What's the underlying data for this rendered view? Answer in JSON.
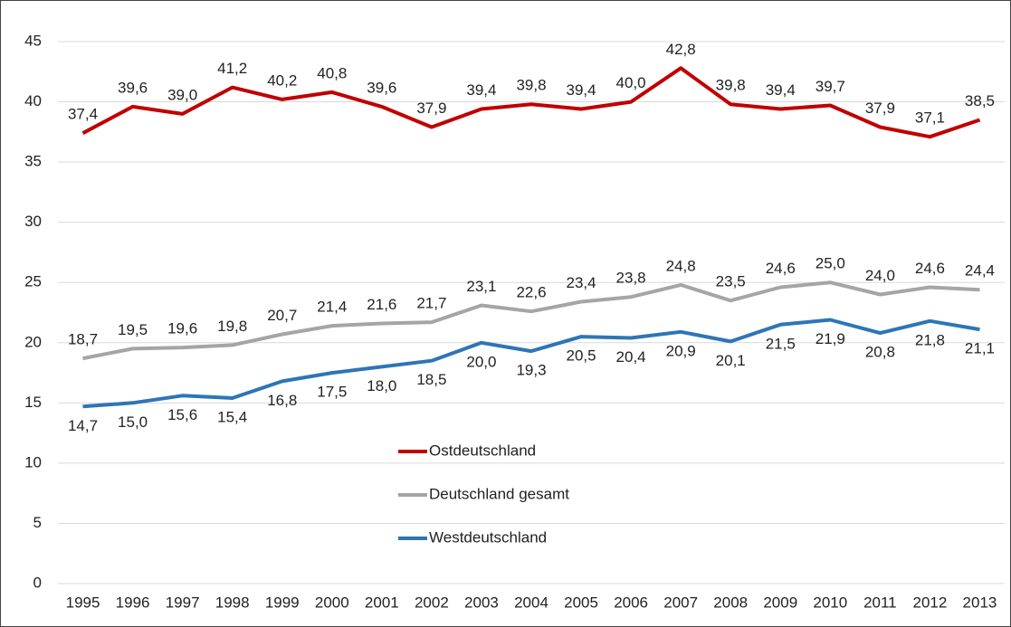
{
  "chart_data": {
    "type": "line",
    "categories": [
      "1995",
      "1996",
      "1997",
      "1998",
      "1999",
      "2000",
      "2001",
      "2002",
      "2003",
      "2004",
      "2005",
      "2006",
      "2007",
      "2008",
      "2009",
      "2010",
      "2011",
      "2012",
      "2013"
    ],
    "series": [
      {
        "name": "Ostdeutschland",
        "color": "#c00000",
        "values": [
          37.4,
          39.6,
          39.0,
          41.2,
          40.2,
          40.8,
          39.6,
          37.9,
          39.4,
          39.8,
          39.4,
          40.0,
          42.8,
          39.8,
          39.4,
          39.7,
          37.9,
          37.1,
          38.5
        ],
        "value_labels": [
          "37,4",
          "39,6",
          "39,0",
          "41,2",
          "40,2",
          "40,8",
          "39,6",
          "37,9",
          "39,4",
          "39,8",
          "39,4",
          "40,0",
          "42,8",
          "39,8",
          "39,4",
          "39,7",
          "37,9",
          "37,1",
          "38,5"
        ]
      },
      {
        "name": "Deutschland gesamt",
        "color": "#a5a5a5",
        "values": [
          18.7,
          19.5,
          19.6,
          19.8,
          20.7,
          21.4,
          21.6,
          21.7,
          23.1,
          22.6,
          23.4,
          23.8,
          24.8,
          23.5,
          24.6,
          25.0,
          24.0,
          24.6,
          24.4
        ],
        "value_labels": [
          "18,7",
          "19,5",
          "19,6",
          "19,8",
          "20,7",
          "21,4",
          "21,6",
          "21,7",
          "23,1",
          "22,6",
          "23,4",
          "23,8",
          "24,8",
          "23,5",
          "24,6",
          "25,0",
          "24,0",
          "24,6",
          "24,4"
        ]
      },
      {
        "name": "Westdeutschland",
        "color": "#2e75b6",
        "values": [
          14.7,
          15.0,
          15.6,
          15.4,
          16.8,
          17.5,
          18.0,
          18.5,
          20.0,
          19.3,
          20.5,
          20.4,
          20.9,
          20.1,
          21.5,
          21.9,
          20.8,
          21.8,
          21.1
        ],
        "value_labels": [
          "14,7",
          "15,0",
          "15,6",
          "15,4",
          "16,8",
          "17,5",
          "18,0",
          "18,5",
          "20,0",
          "19,3",
          "20,5",
          "20,4",
          "20,9",
          "20,1",
          "21,5",
          "21,9",
          "20,8",
          "21,8",
          "21,1"
        ]
      }
    ],
    "ylim": [
      0,
      45
    ],
    "yticks": [
      0,
      5,
      10,
      15,
      20,
      25,
      30,
      35,
      40,
      45
    ],
    "grid": true,
    "legend": "center"
  }
}
